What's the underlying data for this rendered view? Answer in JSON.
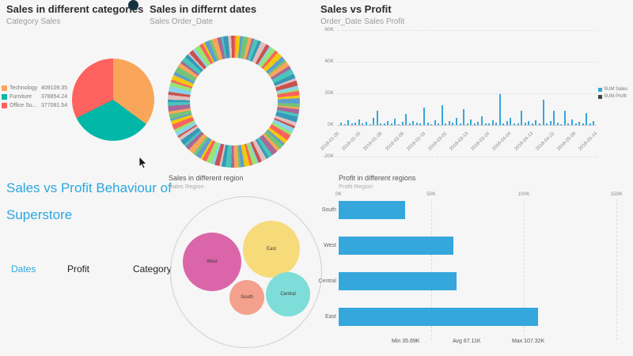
{
  "panels": {
    "category": {
      "title": "Sales in different categories",
      "subtitle": "Category Sales",
      "legend": [
        {
          "label": "Technology",
          "value": "409109.35"
        },
        {
          "label": "Furniture",
          "value": "378854.24"
        },
        {
          "label": "Office Su...",
          "value": "377081.54"
        }
      ]
    },
    "dates": {
      "title": "Sales in differnt dates",
      "subtitle": "Sales Order_Date"
    },
    "sales_profit": {
      "title": "Sales vs Profit",
      "subtitle": "Order_Date Sales Profit",
      "legend": [
        {
          "label": "SUM Sales"
        },
        {
          "label": "SUM Profit"
        }
      ]
    },
    "hero": {
      "line1": "Sales vs Profit Behaviour of",
      "line2": "Superstore",
      "tabs": [
        {
          "label": "Dates",
          "active": true
        },
        {
          "label": "Profit",
          "active": false
        },
        {
          "label": "Category",
          "active": false
        }
      ]
    },
    "region": {
      "title": "Sales in different region",
      "subtitle": "Sales Region"
    },
    "profit_region": {
      "title": "Profit in different regions",
      "subtitle": "Profit Region",
      "stats": {
        "min": "Min 35.69K",
        "avg": "Avg 67.11K",
        "max": "Max 107.32K"
      }
    }
  },
  "colors": {
    "accent_blue": "#2BA7DF",
    "bar_blue": "#35A7DC",
    "background": "#f6f6f6"
  },
  "chart_data": [
    {
      "type": "pie",
      "title": "Sales in different categories",
      "subtitle": "Category Sales",
      "categories": [
        "Technology",
        "Furniture",
        "Office Su..."
      ],
      "values": [
        409109.35,
        378854.24,
        377081.54
      ],
      "colors": [
        "#F9A65A",
        "#00B7A8",
        "#FD625E"
      ],
      "legend_position": "left"
    },
    {
      "type": "pie",
      "subtype": "donut",
      "title": "Sales in differnt dates",
      "subtitle": "Sales Order_Date",
      "description": "Donut of sales by individual order date; ~100 thin multicolored slices of near-equal size",
      "palette": [
        "#FD625E",
        "#F2C80F",
        "#5F9ED1",
        "#73C476",
        "#F9A65A",
        "#A66999",
        "#4AC5BB",
        "#3599B8",
        "#DFBFBF",
        "#C9524E",
        "#8AD4EB",
        "#99E472"
      ]
    },
    {
      "type": "bar",
      "title": "Sales vs Profit",
      "subtitle": "Order_Date Sales Profit",
      "legend": [
        "SUM Sales",
        "SUM Profit"
      ],
      "legend_colors": [
        "#35A7DC",
        "#37474F"
      ],
      "xlabel": "Order_Date",
      "ylim": [
        -20000,
        60000
      ],
      "y_tick_labels": [
        "60K",
        "40K",
        "20K",
        "0K",
        "-20K"
      ],
      "x_tick_labels": [
        "2018-01-05",
        "2018-01-16",
        "2018-01-28",
        "2018-02-06",
        "2018-02-19",
        "2018-03-02",
        "2018-03-13",
        "2018-03-24",
        "2018-04-04",
        "2018-04-13",
        "2018-04-22",
        "2018-05-09",
        "2018-05-14"
      ],
      "series": [
        {
          "name": "SUM Sales",
          "color": "#35A7DC",
          "values": [
            1284,
            432,
            2890,
            765,
            1543,
            3321,
            876,
            2210,
            654,
            4387,
            9120,
            1230,
            987,
            2456,
            1100,
            3780,
            654,
            1890,
            7230,
            980,
            2345,
            1560,
            880,
            11240,
            1670,
            540,
            3210,
            1230,
            12450,
            760,
            2310,
            1540,
            4320,
            980,
            9870,
            1240,
            3450,
            870,
            2210,
            5430,
            1120,
            760,
            2980,
            1340,
            19650,
            870,
            2340,
            4560,
            1230,
            980,
            8760,
            1450,
            2310,
            760,
            3210,
            1230,
            16230,
            980,
            2450,
            8790,
            1340,
            560,
            9230,
            1230,
            3340,
            870,
            2210,
            1120,
            7650,
            980,
            2340
          ]
        }
      ]
    },
    {
      "type": "bubble",
      "title": "Sales in different region",
      "subtitle": "Sales Region",
      "bubbles": [
        {
          "label": "West",
          "color": "#DA66A9",
          "cx": 52,
          "cy": 82,
          "r": 37
        },
        {
          "label": "East",
          "color": "#F7DB7A",
          "cx": 127,
          "cy": 66,
          "r": 36
        },
        {
          "label": "South",
          "color": "#F3A08C",
          "cx": 96,
          "cy": 127,
          "r": 22
        },
        {
          "label": "Central",
          "color": "#7EDDD8",
          "cx": 148,
          "cy": 123,
          "r": 28
        }
      ]
    },
    {
      "type": "bar",
      "orientation": "horizontal",
      "title": "Profit in different regions",
      "subtitle": "Profit Region",
      "categories": [
        "South",
        "West",
        "Central",
        "East"
      ],
      "values": [
        35690,
        61780,
        63650,
        107320
      ],
      "bar_color": "#35A7DC",
      "xlim": [
        0,
        150000
      ],
      "x_tick_labels": [
        "0K",
        "50K",
        "100K",
        "150K"
      ],
      "stats": {
        "min": "Min 35.69K",
        "avg": "Avg 67.11K",
        "max": "Max 107.32K"
      }
    }
  ]
}
